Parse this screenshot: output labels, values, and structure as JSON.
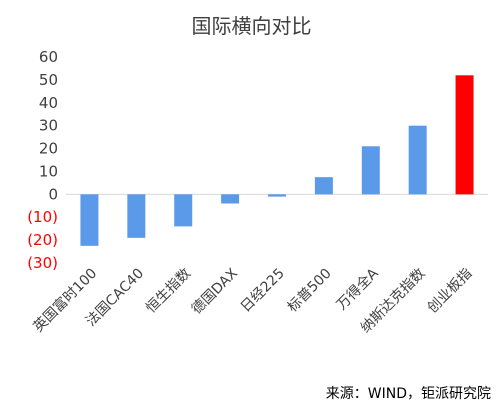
{
  "chart_data": {
    "type": "bar",
    "title": "国际横向对比",
    "categories": [
      "英国富时100",
      "法国CAC40",
      "恒生指数",
      "德国DAX",
      "日经225",
      "标普500",
      "万得全A",
      "纳斯达克指数",
      "创业板指"
    ],
    "values": [
      -22.5,
      -19,
      -14,
      -4,
      -1,
      7.5,
      21,
      30,
      52
    ],
    "colors": [
      "#5b9ae8",
      "#5b9ae8",
      "#5b9ae8",
      "#5b9ae8",
      "#5b9ae8",
      "#5b9ae8",
      "#5b9ae8",
      "#5b9ae8",
      "#ff0000"
    ],
    "ylim": [
      -30,
      60
    ],
    "yticks": [
      60,
      50,
      40,
      30,
      20,
      10,
      0,
      -10,
      -20,
      -30
    ],
    "ytick_labels": [
      "60",
      "50",
      "40",
      "30",
      "20",
      "10",
      "0",
      "(10)",
      "(20)",
      "(30)"
    ],
    "negative_label_color": "#ff0000",
    "grid": false,
    "source": "来源：WIND，钜派研究院"
  }
}
